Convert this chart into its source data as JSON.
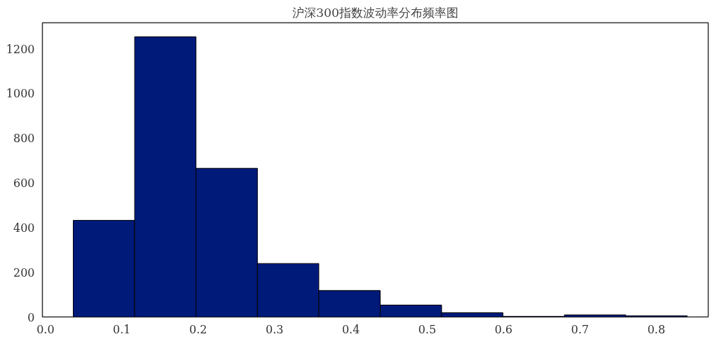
{
  "chart_data": {
    "type": "histogram",
    "title": "沪深300指数波动率分布频率图",
    "bins": [
      0.0364,
      0.1168,
      0.1972,
      0.2776,
      0.358,
      0.4384,
      0.5188,
      0.5992,
      0.6796,
      0.76,
      0.8404
    ],
    "values": [
      432,
      1253,
      665,
      239,
      118,
      53,
      19,
      2,
      9,
      5
    ],
    "color": "#001a7a",
    "xlim": [
      -0.004,
      0.868
    ],
    "ylim": [
      0,
      1316
    ],
    "xticks": [
      {
        "value": 0,
        "label": "0.0"
      },
      0.1,
      0.2,
      0.3,
      0.4,
      0.5,
      0.6,
      0.7,
      0.8
    ],
    "yticks": [
      0,
      200,
      400,
      600,
      800,
      1000,
      1200
    ],
    "grid": false
  }
}
